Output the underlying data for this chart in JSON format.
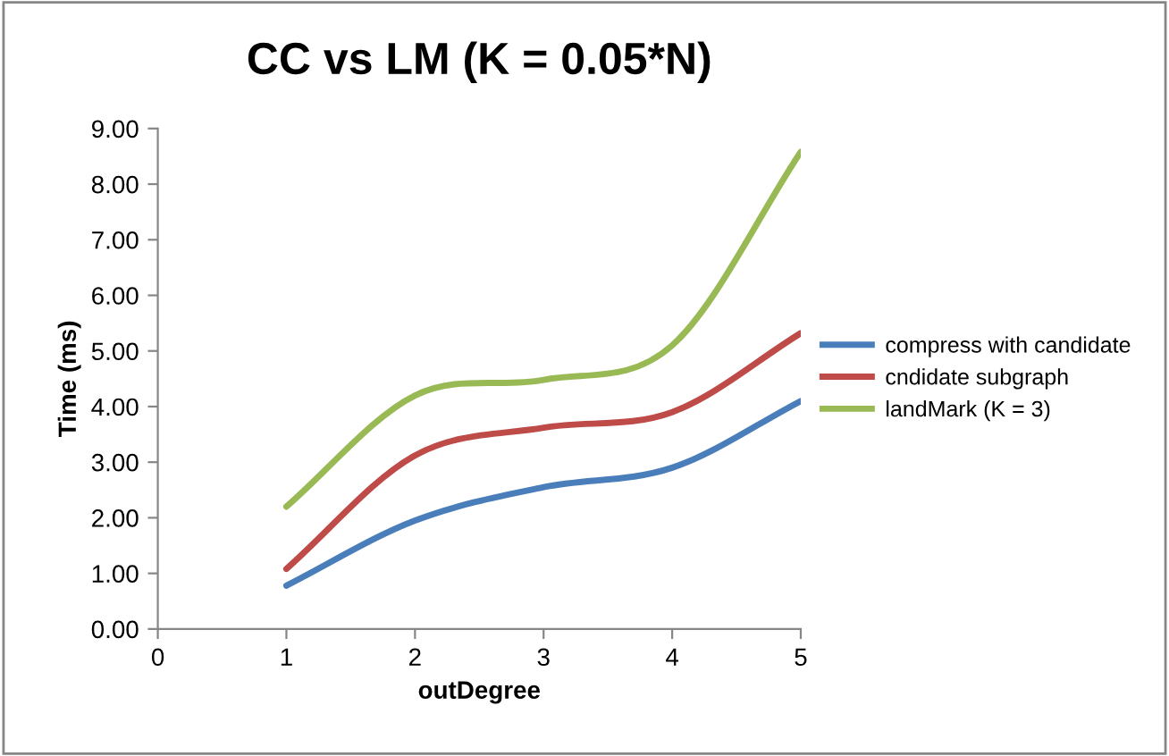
{
  "chart_data": {
    "type": "line",
    "title": "CC vs LM (K = 0.05*N)",
    "xlabel": "outDegree",
    "ylabel": "Time (ms)",
    "x": [
      1,
      2,
      3,
      4,
      5
    ],
    "series": [
      {
        "name": "compress with candidate",
        "color": "#4a7ebb",
        "values": [
          0.78,
          1.95,
          2.55,
          2.9,
          4.1
        ]
      },
      {
        "name": "cndidate subgraph",
        "color": "#be4b48",
        "values": [
          1.08,
          3.12,
          3.62,
          3.9,
          5.32
        ]
      },
      {
        "name": "landMark (K = 3)",
        "color": "#98b954",
        "values": [
          2.2,
          4.2,
          4.48,
          5.1,
          8.58
        ]
      }
    ],
    "xlim": [
      0,
      5
    ],
    "xticks": [
      0,
      1,
      2,
      3,
      4,
      5
    ],
    "ylim": [
      0,
      9
    ],
    "yticks": [
      {
        "value": 0,
        "label": "0.00"
      },
      {
        "value": 1,
        "label": "1.00"
      },
      {
        "value": 2,
        "label": "2.00"
      },
      {
        "value": 3,
        "label": "3.00"
      },
      {
        "value": 4,
        "label": "4.00"
      },
      {
        "value": 5,
        "label": "5.00"
      },
      {
        "value": 6,
        "label": "6.00"
      },
      {
        "value": 7,
        "label": "7.00"
      },
      {
        "value": 8,
        "label": "8.00"
      },
      {
        "value": 9,
        "label": "9.00"
      }
    ],
    "grid": false,
    "legend": "right",
    "marker": "none",
    "line_style": "solid"
  }
}
